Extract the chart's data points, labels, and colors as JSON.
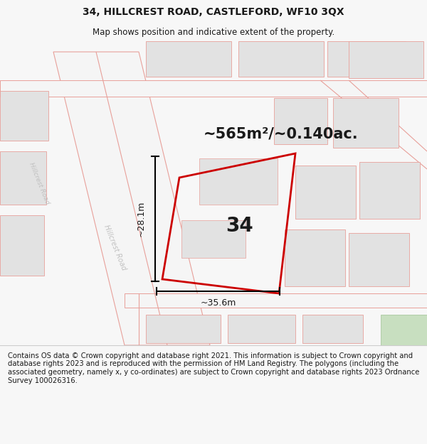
{
  "title": "34, HILLCREST ROAD, CASTLEFORD, WF10 3QX",
  "subtitle": "Map shows position and indicative extent of the property.",
  "area_text": "~565m²/~0.140ac.",
  "number_label": "34",
  "dim_width": "~35.6m",
  "dim_height": "~28.1m",
  "footer": "Contains OS data © Crown copyright and database right 2021. This information is subject to Crown copyright and database rights 2023 and is reproduced with the permission of HM Land Registry. The polygons (including the associated geometry, namely x, y co-ordinates) are subject to Crown copyright and database rights 2023 Ordnance Survey 100026316.",
  "bg_color": "#f7f7f7",
  "map_bg": "#ffffff",
  "road_color": "#e8a09a",
  "building_fill": "#e2e2e2",
  "plot_outline_color": "#cc0000",
  "green_patch_color": "#c8dfc0",
  "title_fontsize": 10,
  "subtitle_fontsize": 8.5,
  "area_fontsize": 15,
  "number_fontsize": 20,
  "dim_fontsize": 9,
  "footer_fontsize": 7.2,
  "road_label_color": "#c0c0c0",
  "road_lw": 1.0
}
